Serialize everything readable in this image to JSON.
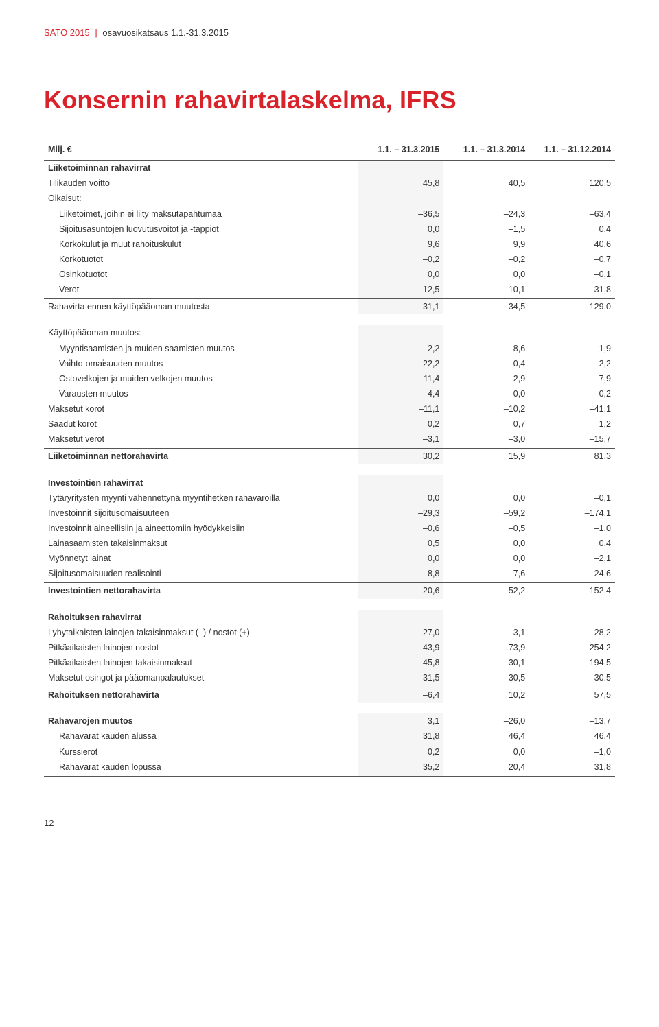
{
  "header": {
    "brand": "SATO 2015",
    "subtitle": "osavuosikatsaus 1.1.-31.3.2015"
  },
  "title": "Konsernin rahavirtalaskelma, IFRS",
  "columns": {
    "unit_label": "Milj. €",
    "periods": [
      "1.1. – 31.3.2015",
      "1.1. – 31.3.2014",
      "1.1. – 31.12.2014"
    ]
  },
  "sections": [
    {
      "rows": [
        {
          "label": "Liiketoiminnan rahavirrat",
          "bold": true
        },
        {
          "label": "Tilikauden voitto",
          "values": [
            "45,8",
            "40,5",
            "120,5"
          ]
        },
        {
          "label": "Oikaisut:"
        },
        {
          "label": "Liiketoimet, joihin ei liity maksutapahtumaa",
          "indent": 1,
          "values": [
            "–36,5",
            "–24,3",
            "–63,4"
          ]
        },
        {
          "label": "Sijoitusasuntojen luovutusvoitot ja -tappiot",
          "indent": 1,
          "values": [
            "0,0",
            "–1,5",
            "0,4"
          ]
        },
        {
          "label": "Korkokulut ja muut rahoituskulut",
          "indent": 1,
          "values": [
            "9,6",
            "9,9",
            "40,6"
          ]
        },
        {
          "label": "Korkotuotot",
          "indent": 1,
          "values": [
            "–0,2",
            "–0,2",
            "–0,7"
          ]
        },
        {
          "label": "Osinkotuotot",
          "indent": 1,
          "values": [
            "0,0",
            "0,0",
            "–0,1"
          ]
        },
        {
          "label": "Verot",
          "indent": 1,
          "values": [
            "12,5",
            "10,1",
            "31,8"
          ],
          "underline": true
        },
        {
          "label": "Rahavirta ennen käyttöpääoman muutosta",
          "values": [
            "31,1",
            "34,5",
            "129,0"
          ]
        }
      ]
    },
    {
      "rows": [
        {
          "label": "Käyttöpääoman muutos:"
        },
        {
          "label": "Myyntisaamisten ja muiden saamisten muutos",
          "indent": 1,
          "values": [
            "–2,2",
            "–8,6",
            "–1,9"
          ]
        },
        {
          "label": "Vaihto-omaisuuden muutos",
          "indent": 1,
          "values": [
            "22,2",
            "–0,4",
            "2,2"
          ]
        },
        {
          "label": "Ostovelkojen ja muiden velkojen muutos",
          "indent": 1,
          "values": [
            "–11,4",
            "2,9",
            "7,9"
          ]
        },
        {
          "label": "Varausten muutos",
          "indent": 1,
          "values": [
            "4,4",
            "0,0",
            "–0,2"
          ]
        },
        {
          "label": "Maksetut korot",
          "values": [
            "–11,1",
            "–10,2",
            "–41,1"
          ]
        },
        {
          "label": "Saadut korot",
          "values": [
            "0,2",
            "0,7",
            "1,2"
          ]
        },
        {
          "label": "Maksetut verot",
          "values": [
            "–3,1",
            "–3,0",
            "–15,7"
          ],
          "underline": true
        },
        {
          "label": "Liiketoiminnan nettorahavirta",
          "bold_label": true,
          "values": [
            "30,2",
            "15,9",
            "81,3"
          ]
        }
      ]
    },
    {
      "rows": [
        {
          "label": "Investointien rahavirrat",
          "bold": true
        },
        {
          "label": "Tytäryritysten myynti vähennettynä myyntihetken rahavaroilla",
          "values": [
            "0,0",
            "0,0",
            "–0,1"
          ]
        },
        {
          "label": "Investoinnit sijoitusomaisuuteen",
          "values": [
            "–29,3",
            "–59,2",
            "–174,1"
          ]
        },
        {
          "label": "Investoinnit aineellisiin ja aineettomiin hyödykkeisiin",
          "values": [
            "–0,6",
            "–0,5",
            "–1,0"
          ]
        },
        {
          "label": "Lainasaamisten takaisinmaksut",
          "values": [
            "0,5",
            "0,0",
            "0,4"
          ]
        },
        {
          "label": "Myönnetyt lainat",
          "values": [
            "0,0",
            "0,0",
            "–2,1"
          ]
        },
        {
          "label": "Sijoitusomaisuuden realisointi",
          "values": [
            "8,8",
            "7,6",
            "24,6"
          ],
          "underline": true
        },
        {
          "label": "Investointien nettorahavirta",
          "bold_label": true,
          "values": [
            "–20,6",
            "–52,2",
            "–152,4"
          ]
        }
      ]
    },
    {
      "rows": [
        {
          "label": "Rahoituksen rahavirrat",
          "bold": true
        },
        {
          "label": "Lyhytaikaisten lainojen takaisinmaksut (–) / nostot (+)",
          "values": [
            "27,0",
            "–3,1",
            "28,2"
          ]
        },
        {
          "label": "Pitkäaikaisten lainojen nostot",
          "values": [
            "43,9",
            "73,9",
            "254,2"
          ]
        },
        {
          "label": "Pitkäaikaisten lainojen takaisinmaksut",
          "values": [
            "–45,8",
            "–30,1",
            "–194,5"
          ]
        },
        {
          "label": "Maksetut osingot ja pääomanpalautukset",
          "values": [
            "–31,5",
            "–30,5",
            "–30,5"
          ],
          "underline": true
        },
        {
          "label": "Rahoituksen nettorahavirta",
          "bold_label": true,
          "values": [
            "–6,4",
            "10,2",
            "57,5"
          ]
        }
      ]
    },
    {
      "rows": [
        {
          "label": "Rahavarojen muutos",
          "bold_label": true,
          "values": [
            "3,1",
            "–26,0",
            "–13,7"
          ]
        },
        {
          "label": "Rahavarat kauden alussa",
          "indent": 1,
          "values": [
            "31,8",
            "46,4",
            "46,4"
          ]
        },
        {
          "label": "Kurssierot",
          "indent": 1,
          "values": [
            "0,2",
            "0,0",
            "–1,0"
          ]
        },
        {
          "label": "Rahavarat kauden lopussa",
          "indent": 1,
          "values": [
            "35,2",
            "20,4",
            "31,8"
          ],
          "underline": true
        }
      ]
    }
  ],
  "page_number": "12",
  "style": {
    "accent_color": "#d8232a",
    "text_color": "#333333",
    "rule_color": "#555555",
    "shade_color": "#f5f5f5",
    "background": "#ffffff",
    "title_fontsize": 36,
    "body_fontsize": 12.5
  }
}
